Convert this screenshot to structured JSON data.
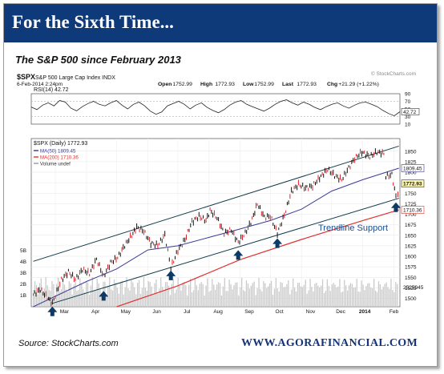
{
  "banner": {
    "title": "For the Sixth Time..."
  },
  "subtitle": "The S&P 500 since February 2013",
  "header": {
    "watermark": "© StockCharts.com",
    "symbol": "$SPX",
    "name": "S&P 500 Large Cap Index  INDX",
    "date": "6-Feb-2014 2:24pm",
    "open_label": "Open",
    "open": "1752.99",
    "high_label": "High",
    "high": "1772.93",
    "low_label": "Low",
    "low": "1752.99",
    "last_label": "Last",
    "last": "1772.93",
    "chg_label": "Chg",
    "chg": "+21.29 (+1.22%)"
  },
  "footer": {
    "source": "Source: StockCharts.com",
    "brand": "WWW.AGORAFINANCIAL.COM"
  },
  "colors": {
    "banner": "#0f3a7a",
    "up_bar": "#111111",
    "down_bar": "#d9262c",
    "ma50": "#3a3a96",
    "ma200": "#e0312e",
    "trendline": "#0f3a4a",
    "arrow": "#0d3b66",
    "volume": "#cbcbcb",
    "annotation": "#1a4d8f"
  },
  "chart_data": [
    {
      "type": "line",
      "title": "RSI(14) 42.72",
      "ylim": [
        10,
        90
      ],
      "y_ticks": [
        "10",
        "30",
        "50",
        "70",
        "90"
      ],
      "last_value": 42.72,
      "last_label": "42.72",
      "levels": [
        30,
        70
      ],
      "series": [
        {
          "values": [
            55,
            48,
            60,
            66,
            58,
            72,
            68,
            52,
            45,
            56,
            64,
            70,
            62,
            58,
            66,
            72,
            60,
            50,
            62,
            68,
            58,
            44,
            36,
            42,
            58,
            64,
            70,
            62,
            50,
            60,
            66,
            54,
            46,
            40,
            48,
            60,
            68,
            72,
            62,
            56,
            50,
            44,
            52,
            62,
            70,
            74,
            66,
            60,
            68,
            62,
            54,
            48,
            56,
            62,
            66,
            58,
            52,
            60,
            66,
            68,
            62,
            56,
            46,
            38,
            32,
            42.72
          ]
        }
      ]
    },
    {
      "type": "line",
      "title": "$SPX (Daily) 1772.93",
      "legend": [
        "MA(50) 1809.45",
        "MA(200) 1710.36",
        "Volume undef"
      ],
      "legend_placement": "top-left",
      "x": [
        "Mar",
        "Apr",
        "May",
        "Jun",
        "Jul",
        "Aug",
        "Sep",
        "Oct",
        "Nov",
        "Dec",
        "2014",
        "Feb"
      ],
      "ylim": [
        1480,
        1880
      ],
      "y_ticks": [
        "1500",
        "1525",
        "1550",
        "1575",
        "1600",
        "1625",
        "1650",
        "1675",
        "1700",
        "1725",
        "1750",
        "1775",
        "1800",
        "1825",
        "1850"
      ],
      "volume_ticks": [
        "1B",
        "2B",
        "3B",
        "4B",
        "5B"
      ],
      "price_labels": [
        "1772.93",
        "1809.45",
        "1710.36",
        "2525945"
      ],
      "price_series": [
        [
          "2013-02-07",
          1509
        ],
        [
          "2013-02-14",
          1521
        ],
        [
          "2013-02-21",
          1502
        ],
        [
          "2013-02-26",
          1488
        ],
        [
          "2013-03-07",
          1544
        ],
        [
          "2013-03-14",
          1563
        ],
        [
          "2013-03-21",
          1545
        ],
        [
          "2013-03-28",
          1569
        ],
        [
          "2013-04-04",
          1559
        ],
        [
          "2013-04-11",
          1593
        ],
        [
          "2013-04-18",
          1552
        ],
        [
          "2013-04-25",
          1585
        ],
        [
          "2013-05-02",
          1597
        ],
        [
          "2013-05-09",
          1626
        ],
        [
          "2013-05-16",
          1650
        ],
        [
          "2013-05-21",
          1669
        ],
        [
          "2013-05-28",
          1660
        ],
        [
          "2013-06-04",
          1631
        ],
        [
          "2013-06-11",
          1626
        ],
        [
          "2013-06-18",
          1651
        ],
        [
          "2013-06-24",
          1573
        ],
        [
          "2013-07-01",
          1614
        ],
        [
          "2013-07-08",
          1640
        ],
        [
          "2013-07-15",
          1682
        ],
        [
          "2013-07-22",
          1695
        ],
        [
          "2013-07-29",
          1685
        ],
        [
          "2013-08-02",
          1709
        ],
        [
          "2013-08-09",
          1691
        ],
        [
          "2013-08-16",
          1655
        ],
        [
          "2013-08-23",
          1663
        ],
        [
          "2013-08-30",
          1633
        ],
        [
          "2013-09-06",
          1655
        ],
        [
          "2013-09-13",
          1688
        ],
        [
          "2013-09-18",
          1725
        ],
        [
          "2013-09-25",
          1693
        ],
        [
          "2013-10-01",
          1695
        ],
        [
          "2013-10-08",
          1655
        ],
        [
          "2013-10-15",
          1698
        ],
        [
          "2013-10-22",
          1754
        ],
        [
          "2013-10-29",
          1771
        ],
        [
          "2013-11-05",
          1762
        ],
        [
          "2013-11-12",
          1767
        ],
        [
          "2013-11-19",
          1787
        ],
        [
          "2013-11-27",
          1807
        ],
        [
          "2013-12-04",
          1792
        ],
        [
          "2013-12-11",
          1782
        ],
        [
          "2013-12-18",
          1810
        ],
        [
          "2013-12-24",
          1833
        ],
        [
          "2013-12-31",
          1848
        ],
        [
          "2014-01-08",
          1837
        ],
        [
          "2014-01-15",
          1848
        ],
        [
          "2014-01-22",
          1844
        ],
        [
          "2014-01-24",
          1790
        ],
        [
          "2014-01-30",
          1794
        ],
        [
          "2014-02-03",
          1742
        ],
        [
          "2014-02-05",
          1752
        ],
        [
          "2014-02-06",
          1772.93
        ]
      ],
      "ma50": [
        [
          "2013-02-07",
          1480
        ],
        [
          "2013-04-01",
          1540
        ],
        [
          "2013-05-01",
          1570
        ],
        [
          "2013-06-01",
          1615
        ],
        [
          "2013-07-01",
          1625
        ],
        [
          "2013-08-01",
          1645
        ],
        [
          "2013-09-01",
          1665
        ],
        [
          "2013-10-01",
          1685
        ],
        [
          "2013-11-01",
          1712
        ],
        [
          "2013-12-01",
          1755
        ],
        [
          "2014-01-01",
          1782
        ],
        [
          "2014-02-06",
          1809.45
        ]
      ],
      "ma200": [
        [
          "2013-05-01",
          1480
        ],
        [
          "2013-07-01",
          1530
        ],
        [
          "2013-09-01",
          1592
        ],
        [
          "2013-11-01",
          1640
        ],
        [
          "2014-01-01",
          1685
        ],
        [
          "2014-02-06",
          1710.36
        ]
      ],
      "trend_upper": [
        [
          "2013-02-07",
          1588
        ],
        [
          "2014-02-06",
          1862
        ]
      ],
      "trend_lower": [
        [
          "2013-02-26",
          1488
        ],
        [
          "2014-02-06",
          1738
        ]
      ],
      "support_points": [
        "2013-02-26",
        "2013-04-18",
        "2013-06-24",
        "2013-08-30",
        "2013-10-08",
        "2014-02-03"
      ],
      "annotation": "Trendline Support"
    }
  ]
}
